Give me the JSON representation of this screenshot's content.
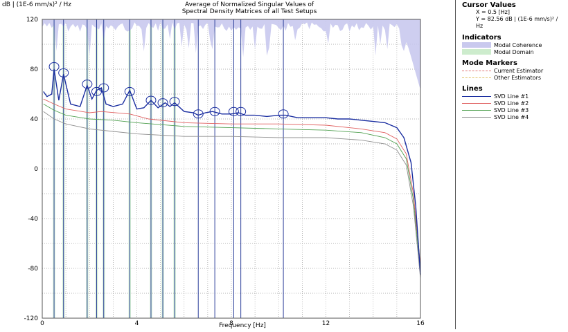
{
  "header": {
    "y_label": "dB | (1E-6 mm/s)² / Hz",
    "title_line1": "Average of Normalized Singular Values of",
    "title_line2": "Spectral Density Matrices of all Test Setups",
    "x_label": "Frequency [Hz]"
  },
  "side_panel": {
    "cursor_title": "Cursor Values",
    "cursor_x": "X = 0.5 [Hz]",
    "cursor_y": "Y = 82.56 dB | (1E-6 mm/s)² / Hz",
    "indicators_title": "Indicators",
    "indicators": [
      {
        "label": "Modal Coherence",
        "color": "#c9c9ee"
      },
      {
        "label": "Modal Domain",
        "color": "#cdeccd"
      }
    ],
    "markers_title": "Mode Markers",
    "markers": [
      {
        "label": "Current Estimator",
        "color": "#e07070"
      },
      {
        "label": "Other Estimators",
        "color": "#e0c060"
      }
    ],
    "lines_title": "Lines",
    "lines": [
      {
        "label": "SVD Line #1",
        "color": "#1a2ea0"
      },
      {
        "label": "SVD Line #2",
        "color": "#e06060"
      },
      {
        "label": "SVD Line #3",
        "color": "#50a050"
      },
      {
        "label": "SVD Line #4",
        "color": "#909090"
      }
    ]
  },
  "chart_data": {
    "type": "line",
    "xlim": [
      0,
      16
    ],
    "ylim": [
      -120,
      120
    ],
    "x_ticks": [
      0,
      4,
      8,
      12,
      16
    ],
    "y_ticks": [
      120,
      80,
      40,
      0,
      -40,
      -80,
      -120
    ],
    "grid": true,
    "series": [
      {
        "name": "SVD Line #1",
        "color": "#1a2ea0",
        "x": [
          0.05,
          0.2,
          0.4,
          0.5,
          0.7,
          0.9,
          1.2,
          1.6,
          1.9,
          2.1,
          2.3,
          2.5,
          2.7,
          3.0,
          3.4,
          3.7,
          4.0,
          4.3,
          4.6,
          4.9,
          5.2,
          5.4,
          5.6,
          6.0,
          6.4,
          6.6,
          6.9,
          7.2,
          7.6,
          8.0,
          8.3,
          8.6,
          9.0,
          9.5,
          10.0,
          10.3,
          10.8,
          11.5,
          12.0,
          12.5,
          13.0,
          13.5,
          14.0,
          14.5,
          15.0,
          15.3,
          15.6,
          15.8,
          16.0
        ],
        "y": [
          62,
          58,
          60,
          80,
          55,
          76,
          52,
          50,
          67,
          56,
          63,
          65,
          52,
          50,
          52,
          63,
          48,
          49,
          55,
          49,
          53,
          50,
          53,
          46,
          45,
          43,
          45,
          46,
          44,
          44,
          45,
          43,
          43,
          42,
          43,
          43,
          41,
          41,
          41,
          40,
          40,
          39,
          38,
          37,
          33,
          25,
          5,
          -30,
          -85
        ]
      },
      {
        "name": "SVD Line #2",
        "color": "#e06060",
        "x": [
          0.05,
          0.5,
          1.0,
          2.0,
          2.5,
          3.7,
          4.5,
          6.0,
          8.0,
          10.0,
          12.0,
          13.5,
          14.5,
          15.0,
          15.4,
          15.7,
          16.0
        ],
        "y": [
          56,
          52,
          48,
          45,
          46,
          44,
          40,
          37,
          36,
          36,
          35,
          32,
          29,
          24,
          12,
          -20,
          -78
        ]
      },
      {
        "name": "SVD Line #3",
        "color": "#50a050",
        "x": [
          0.05,
          0.5,
          1.0,
          2.0,
          3.0,
          4.0,
          6.0,
          8.0,
          10.0,
          12.0,
          13.5,
          14.5,
          15.0,
          15.4,
          15.7,
          16.0
        ],
        "y": [
          52,
          47,
          43,
          40,
          39,
          37,
          34,
          33,
          32,
          31,
          29,
          25,
          20,
          8,
          -25,
          -82
        ]
      },
      {
        "name": "SVD Line #4",
        "color": "#909090",
        "x": [
          0.05,
          0.5,
          1.0,
          2.0,
          3.0,
          4.0,
          6.0,
          8.0,
          10.0,
          12.0,
          13.5,
          14.5,
          15.0,
          15.4,
          15.7,
          16.0
        ],
        "y": [
          46,
          40,
          36,
          32,
          30,
          28,
          26,
          26,
          25,
          25,
          23,
          20,
          15,
          3,
          -30,
          -88
        ]
      }
    ],
    "peak_markers": [
      {
        "x": 0.5,
        "y": 82
      },
      {
        "x": 0.9,
        "y": 77
      },
      {
        "x": 1.9,
        "y": 68
      },
      {
        "x": 2.3,
        "y": 62
      },
      {
        "x": 2.6,
        "y": 65
      },
      {
        "x": 3.7,
        "y": 62
      },
      {
        "x": 4.6,
        "y": 55
      },
      {
        "x": 5.1,
        "y": 53
      },
      {
        "x": 5.6,
        "y": 54
      },
      {
        "x": 6.6,
        "y": 44
      },
      {
        "x": 7.3,
        "y": 46
      },
      {
        "x": 8.1,
        "y": 46
      },
      {
        "x": 8.4,
        "y": 46
      },
      {
        "x": 10.2,
        "y": 44
      }
    ],
    "mode_lines_hz": [
      0.5,
      0.9,
      1.9,
      2.3,
      2.6,
      3.7,
      4.6,
      5.1,
      5.6,
      6.6,
      7.3,
      8.1,
      8.4,
      10.2
    ],
    "domain_bands_hz": [
      [
        0.45,
        0.55
      ],
      [
        0.85,
        0.95
      ],
      [
        1.85,
        1.95
      ],
      [
        2.25,
        2.35
      ],
      [
        2.55,
        2.65
      ],
      [
        3.65,
        3.75
      ],
      [
        4.55,
        4.65
      ],
      [
        5.05,
        5.15
      ],
      [
        5.55,
        5.65
      ]
    ]
  }
}
